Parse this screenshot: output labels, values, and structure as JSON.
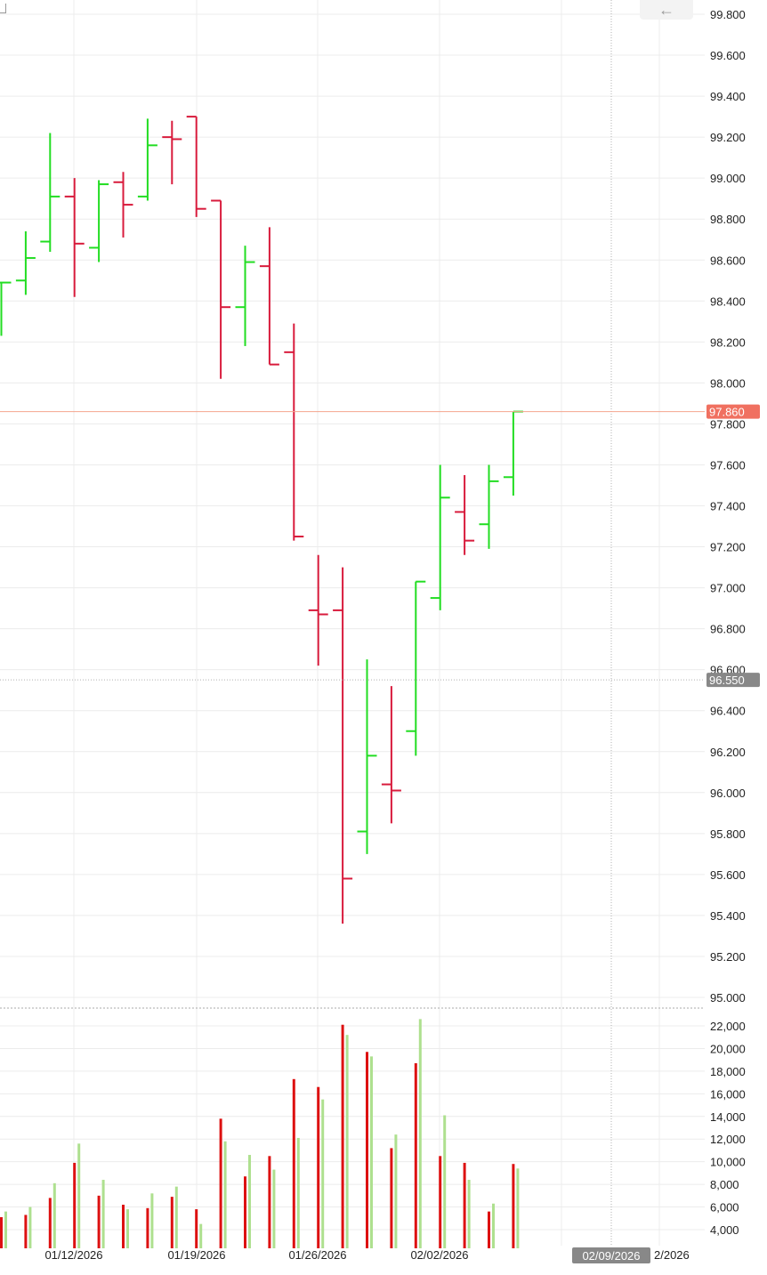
{
  "colors": {
    "up": "#22dd22",
    "down": "#d81b3c",
    "vol_down": "#dd1111",
    "vol_up": "#aee08f",
    "grid": "#ececec",
    "last_price_line": "#f4a48e",
    "last_price_bg": "#f07060",
    "crosshair_bg": "#888888",
    "axis_text": "#222222"
  },
  "icons": {
    "back": "left-arrow-icon"
  },
  "chart_data": {
    "type": "ohlc",
    "price_axis": {
      "ylim": [
        94.99,
        99.87
      ],
      "ticks": [
        "99.800",
        "99.600",
        "99.400",
        "99.200",
        "99.000",
        "98.800",
        "98.600",
        "98.400",
        "98.200",
        "98.000",
        "97.800",
        "97.600",
        "97.400",
        "97.200",
        "97.000",
        "96.800",
        "96.600",
        "96.400",
        "96.200",
        "96.000",
        "95.800",
        "95.600",
        "95.400",
        "95.200",
        "95.000"
      ],
      "tick_values": [
        99.8,
        99.6,
        99.4,
        99.2,
        99.0,
        98.8,
        98.6,
        98.4,
        98.2,
        98.0,
        97.8,
        97.6,
        97.4,
        97.2,
        97.0,
        96.8,
        96.6,
        96.4,
        96.2,
        96.0,
        95.8,
        95.6,
        95.4,
        95.2,
        95.0
      ]
    },
    "volume_axis": {
      "ylim": [
        2700,
        23300
      ],
      "ticks": [
        "22,000",
        "20,000",
        "18,000",
        "16,000",
        "14,000",
        "12,000",
        "10,000",
        "8,000",
        "6,000",
        "4,000"
      ],
      "tick_values": [
        22000,
        20000,
        18000,
        16000,
        14000,
        12000,
        10000,
        8000,
        6000,
        4000
      ]
    },
    "x_labels": [
      "01/12/2026",
      "01/19/2026",
      "01/26/2026",
      "02/02/2026"
    ],
    "crosshair_date": "02/09/2026",
    "partial_date_label": "2/2026",
    "last_price": "97.860",
    "last_price_value": 97.86,
    "crosshair_price": "96.550",
    "crosshair_price_value": 96.55,
    "bars": [
      {
        "o": 98.49,
        "h": 98.49,
        "l": 98.23,
        "c": 98.49,
        "up": true
      },
      {
        "o": 98.5,
        "h": 98.74,
        "l": 98.43,
        "c": 98.61,
        "up": true
      },
      {
        "o": 98.69,
        "h": 99.22,
        "l": 98.64,
        "c": 98.91,
        "up": true
      },
      {
        "o": 98.91,
        "h": 99.0,
        "l": 98.42,
        "c": 98.68,
        "up": false
      },
      {
        "o": 98.66,
        "h": 98.99,
        "l": 98.59,
        "c": 98.97,
        "up": true
      },
      {
        "o": 98.98,
        "h": 99.03,
        "l": 98.71,
        "c": 98.87,
        "up": false
      },
      {
        "o": 98.91,
        "h": 99.29,
        "l": 98.89,
        "c": 99.16,
        "up": true
      },
      {
        "o": 99.2,
        "h": 99.28,
        "l": 98.97,
        "c": 99.19,
        "up": false
      },
      {
        "o": 99.3,
        "h": 99.3,
        "l": 98.81,
        "c": 98.85,
        "up": false
      },
      {
        "o": 98.89,
        "h": 98.89,
        "l": 98.02,
        "c": 98.37,
        "up": false
      },
      {
        "o": 98.37,
        "h": 98.67,
        "l": 98.18,
        "c": 98.59,
        "up": true
      },
      {
        "o": 98.57,
        "h": 98.76,
        "l": 98.09,
        "c": 98.09,
        "up": false
      },
      {
        "o": 98.15,
        "h": 98.29,
        "l": 97.23,
        "c": 97.25,
        "up": false
      },
      {
        "o": 96.89,
        "h": 97.16,
        "l": 96.62,
        "c": 96.87,
        "up": false
      },
      {
        "o": 96.89,
        "h": 97.1,
        "l": 95.36,
        "c": 95.58,
        "up": false
      },
      {
        "o": 95.81,
        "h": 96.65,
        "l": 95.7,
        "c": 96.18,
        "up": true
      },
      {
        "o": 96.04,
        "h": 96.52,
        "l": 95.85,
        "c": 96.01,
        "up": false
      },
      {
        "o": 96.3,
        "h": 97.03,
        "l": 96.18,
        "c": 97.03,
        "up": true
      },
      {
        "o": 96.95,
        "h": 97.6,
        "l": 96.89,
        "c": 97.44,
        "up": true
      },
      {
        "o": 97.37,
        "h": 97.55,
        "l": 97.16,
        "c": 97.23,
        "up": false
      },
      {
        "o": 97.31,
        "h": 97.6,
        "l": 97.19,
        "c": 97.52,
        "up": true
      },
      {
        "o": 97.54,
        "h": 97.86,
        "l": 97.45,
        "c": 97.86,
        "up": true
      }
    ],
    "volumes": [
      [
        5100,
        5600
      ],
      [
        5300,
        6000
      ],
      [
        6800,
        8100
      ],
      [
        9900,
        11600
      ],
      [
        7000,
        8400
      ],
      [
        6200,
        5800
      ],
      [
        5900,
        7200
      ],
      [
        6900,
        7800
      ],
      [
        5800,
        4500
      ],
      [
        13800,
        11800
      ],
      [
        8700,
        10600
      ],
      [
        10500,
        9300
      ],
      [
        17300,
        12100
      ],
      [
        16600,
        15500
      ],
      [
        22100,
        21200
      ],
      [
        19700,
        19300
      ],
      [
        11200,
        12400
      ],
      [
        18700,
        22600
      ],
      [
        10500,
        14100
      ],
      [
        9900,
        8400
      ],
      [
        5600,
        6300
      ],
      [
        9800,
        9400
      ]
    ]
  }
}
